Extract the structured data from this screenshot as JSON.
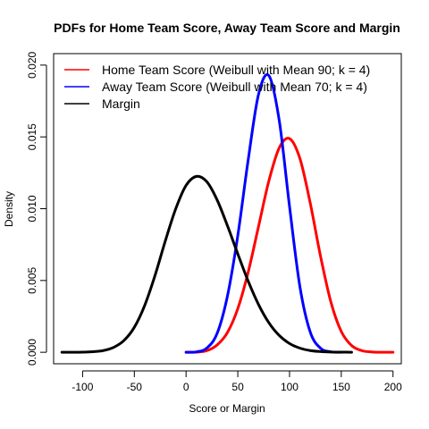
{
  "chart_data": {
    "type": "line",
    "title": "PDFs for Home Team Score, Away Team Score and Margin",
    "xlabel": "Score or Margin",
    "ylabel": "Density",
    "xlim": [
      -128,
      208
    ],
    "ylim": [
      -0.0008,
      0.0208
    ],
    "x_ticks": [
      -100,
      -50,
      0,
      50,
      100,
      150,
      200
    ],
    "x_tick_labels": [
      "-100",
      "-50",
      "0",
      "50",
      "100",
      "150",
      "200"
    ],
    "y_ticks": [
      0,
      0.005,
      0.01,
      0.015,
      0.02
    ],
    "y_tick_labels": [
      "0.000",
      "0.005",
      "0.010",
      "0.015",
      "0.020"
    ],
    "grid": false,
    "legend_position": "top-left",
    "series": [
      {
        "name": "Home Team Score (Weibull with Mean 90; k = 4)",
        "color": "#ff0000",
        "x": [
          0,
          10,
          20,
          30,
          40,
          50,
          60,
          70,
          80,
          90,
          100,
          110,
          120,
          130,
          140,
          150,
          160,
          170,
          180,
          190,
          200
        ],
        "y": [
          0,
          1e-05,
          0.00011,
          0.00051,
          0.00138,
          0.00304,
          0.00557,
          0.00875,
          0.01193,
          0.01423,
          0.01488,
          0.0135,
          0.01039,
          0.00667,
          0.00349,
          0.00145,
          0.00047,
          0.00011,
          2e-05,
          0,
          0
        ]
      },
      {
        "name": "Away Team Score (Weibull with Mean 70; k = 4)",
        "color": "#0000ff",
        "x": [
          0,
          10,
          20,
          30,
          40,
          50,
          60,
          70,
          80,
          90,
          100,
          110,
          120,
          130,
          140,
          150
        ],
        "y": [
          0,
          3e-05,
          0.00029,
          0.00131,
          0.00392,
          0.00813,
          0.01338,
          0.01795,
          0.01927,
          0.01616,
          0.01015,
          0.00458,
          0.00141,
          0.00028,
          3e-05,
          0
        ]
      },
      {
        "name": "Margin",
        "color": "#000000",
        "x": [
          -120,
          -110,
          -100,
          -90,
          -80,
          -70,
          -60,
          -50,
          -40,
          -30,
          -20,
          -10,
          0,
          10,
          20,
          30,
          40,
          50,
          60,
          70,
          80,
          90,
          100,
          110,
          120,
          130,
          140,
          150,
          160
        ],
        "y": [
          0,
          0,
          1e-05,
          4e-05,
          0.00012,
          0.00034,
          0.00082,
          0.00174,
          0.00326,
          0.00535,
          0.00777,
          0.00999,
          0.01162,
          0.01225,
          0.01188,
          0.01061,
          0.00881,
          0.00685,
          0.00496,
          0.00333,
          0.00206,
          0.00117,
          0.00061,
          0.00029,
          0.00012,
          5e-05,
          2e-05,
          1e-05,
          0
        ]
      }
    ]
  }
}
